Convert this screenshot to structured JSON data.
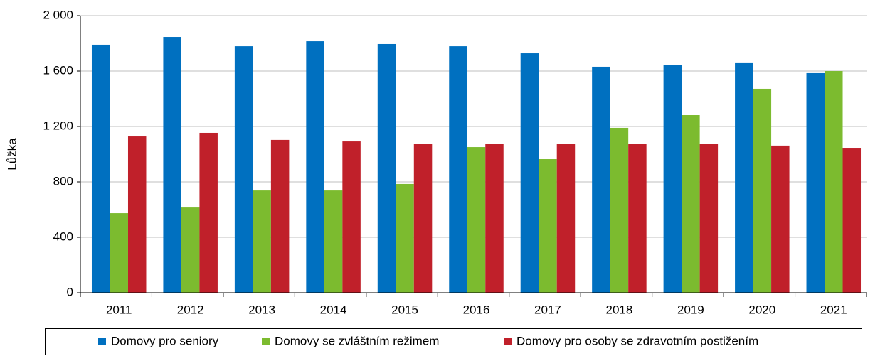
{
  "chart_data": {
    "type": "bar",
    "y_label": "Lůžka",
    "categories": [
      "2011",
      "2012",
      "2013",
      "2014",
      "2015",
      "2016",
      "2017",
      "2018",
      "2019",
      "2020",
      "2021"
    ],
    "series": [
      {
        "name": "Domovy pro seniory",
        "color": "#0070c0",
        "values": [
          1790,
          1846,
          1779,
          1815,
          1795,
          1779,
          1728,
          1631,
          1641,
          1662,
          1585
        ]
      },
      {
        "name": "Domovy se zvláštním režimem",
        "color": "#7cbb2f",
        "values": [
          574,
          615,
          738,
          738,
          785,
          1051,
          964,
          1190,
          1282,
          1472,
          1600
        ]
      },
      {
        "name": "Domovy pro osoby se zdravotním postižením",
        "color": "#c0202a",
        "values": [
          1128,
          1154,
          1103,
          1092,
          1072,
          1072,
          1072,
          1072,
          1072,
          1062,
          1046
        ]
      }
    ],
    "ylim": [
      0,
      2000
    ],
    "yticks": [
      0,
      400,
      800,
      {
        "value": 1200,
        "label": "1 200"
      },
      {
        "value": 1600,
        "label": "1 600"
      },
      {
        "value": 2000,
        "label": "2 000"
      }
    ],
    "grid": true,
    "legend": "bottom"
  }
}
